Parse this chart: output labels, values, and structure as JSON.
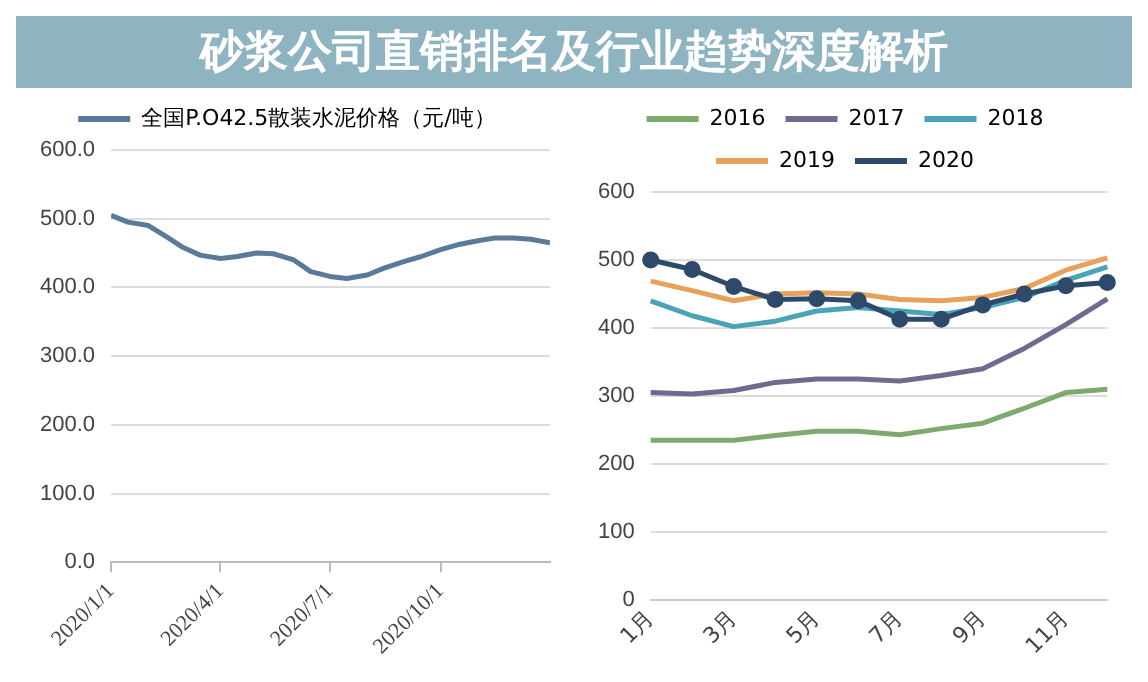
{
  "chart_data": [
    {
      "type": "other",
      "title": "砂浆公司直销排名及行业趋势深度解析"
    },
    {
      "type": "line",
      "legend": "top",
      "grid": "y",
      "xlim": [
        "2020-01-01",
        "2020-12-31"
      ],
      "xticks": [
        {
          "value": "2020-01-01",
          "label": "2020/1/1"
        },
        {
          "value": "2020-04-01",
          "label": "2020/4/1"
        },
        {
          "value": "2020-07-01",
          "label": "2020/7/1"
        },
        {
          "value": "2020-10-01",
          "label": "2020/10/1"
        }
      ],
      "ylim": [
        0,
        600
      ],
      "yticks": [
        {
          "value": 0,
          "label": "0.0"
        },
        {
          "value": 100,
          "label": "100.0"
        },
        {
          "value": 200,
          "label": "200.0"
        },
        {
          "value": 300,
          "label": "300.0"
        },
        {
          "value": 400,
          "label": "400.0"
        },
        {
          "value": 500,
          "label": "500.0"
        },
        {
          "value": 600,
          "label": "600.0"
        }
      ],
      "x": [
        "2020-01-01",
        "2020-01-15",
        "2020-02-01",
        "2020-02-15",
        "2020-03-01",
        "2020-03-15",
        "2020-04-01",
        "2020-04-15",
        "2020-05-01",
        "2020-05-15",
        "2020-06-01",
        "2020-06-15",
        "2020-07-01",
        "2020-07-15",
        "2020-08-01",
        "2020-08-15",
        "2020-09-01",
        "2020-09-15",
        "2020-10-01",
        "2020-10-15",
        "2020-11-01",
        "2020-11-15",
        "2020-12-01",
        "2020-12-15",
        "2020-12-31"
      ],
      "series": [
        {
          "name": "全国P.O42.5散装水泥价格（元/吨）",
          "color": "#5b7a99",
          "values": [
            505,
            495,
            490,
            475,
            458,
            447,
            442,
            445,
            450,
            449,
            440,
            423,
            416,
            413,
            418,
            428,
            438,
            445,
            455,
            462,
            468,
            472,
            472,
            470,
            465
          ]
        }
      ]
    },
    {
      "type": "line",
      "legend": "top",
      "grid": "y",
      "categories": [
        "1月",
        null,
        "3月",
        null,
        "5月",
        null,
        "7月",
        null,
        "9月",
        null,
        "11月",
        null
      ],
      "ylim": [
        0,
        600
      ],
      "yticks": [
        0,
        100,
        200,
        300,
        400,
        500,
        600
      ],
      "series": [
        {
          "name": "2016",
          "color": "#7faa6e",
          "marker": "none",
          "values": [
            235,
            235,
            235,
            242,
            248,
            248,
            243,
            252,
            260,
            282,
            305,
            310
          ]
        },
        {
          "name": "2017",
          "color": "#6f6a8f",
          "marker": "none",
          "values": [
            305,
            303,
            308,
            320,
            325,
            325,
            322,
            330,
            340,
            370,
            405,
            443
          ]
        },
        {
          "name": "2018",
          "color": "#4aa3b8",
          "marker": "none",
          "values": [
            440,
            418,
            402,
            410,
            425,
            430,
            425,
            420,
            430,
            445,
            470,
            490
          ]
        },
        {
          "name": "2019",
          "color": "#e8a05a",
          "marker": "none",
          "values": [
            469,
            455,
            440,
            450,
            452,
            450,
            442,
            440,
            445,
            458,
            485,
            503
          ]
        },
        {
          "name": "2020",
          "color": "#2e4a6b",
          "marker": "circle",
          "values": [
            500,
            486,
            461,
            442,
            443,
            440,
            413,
            413,
            434,
            450,
            462,
            467
          ]
        }
      ]
    }
  ]
}
